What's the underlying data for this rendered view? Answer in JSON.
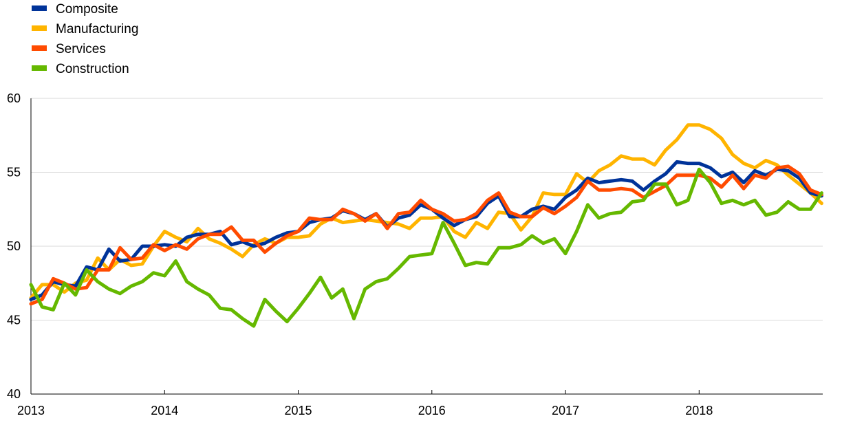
{
  "chart_data": {
    "type": "line",
    "x_start": "2013-01",
    "x_frequency": "monthly",
    "xticks": [
      "2013",
      "2014",
      "2015",
      "2016",
      "2017",
      "2018"
    ],
    "ylim": [
      40,
      60
    ],
    "yticks": [
      40,
      45,
      50,
      55,
      60
    ],
    "grid": "horizontal",
    "legend_position": "top-left",
    "series": [
      {
        "name": "Composite",
        "color": "#003399",
        "values": [
          46.4,
          46.7,
          47.6,
          47.4,
          47.3,
          48.6,
          48.4,
          49.8,
          49.0,
          49.1,
          50.0,
          50.0,
          50.1,
          50.0,
          50.6,
          50.8,
          50.8,
          51.0,
          50.1,
          50.3,
          50.0,
          50.2,
          50.6,
          50.9,
          51.0,
          51.6,
          51.8,
          51.9,
          52.4,
          52.2,
          51.8,
          52.2,
          51.3,
          51.9,
          52.1,
          52.8,
          52.5,
          51.9,
          51.4,
          51.8,
          52.0,
          52.9,
          53.4,
          52.0,
          52.0,
          52.5,
          52.7,
          52.5,
          53.3,
          53.8,
          54.6,
          54.3,
          54.4,
          54.5,
          54.4,
          53.8,
          54.4,
          54.9,
          55.7,
          55.6,
          55.6,
          55.3,
          54.7,
          55.0,
          54.3,
          55.1,
          54.8,
          55.2,
          55.1,
          54.6,
          53.6,
          53.4
        ]
      },
      {
        "name": "Manufacturing",
        "color": "#ffb400",
        "values": [
          46.5,
          47.4,
          47.4,
          46.9,
          47.5,
          47.7,
          49.2,
          48.4,
          49.1,
          48.7,
          48.8,
          50.0,
          51.0,
          50.6,
          50.3,
          51.2,
          50.5,
          50.2,
          49.8,
          49.3,
          50.1,
          50.5,
          50.2,
          50.6,
          50.6,
          50.7,
          51.5,
          51.9,
          51.6,
          51.7,
          51.8,
          51.7,
          51.6,
          51.5,
          51.2,
          51.9,
          51.9,
          52.0,
          51.0,
          50.6,
          51.6,
          51.2,
          52.3,
          52.2,
          51.1,
          52.0,
          53.6,
          53.5,
          53.5,
          54.9,
          54.3,
          55.1,
          55.5,
          56.1,
          55.9,
          55.9,
          55.5,
          56.5,
          57.2,
          58.2,
          58.2,
          57.9,
          57.3,
          56.2,
          55.6,
          55.3,
          55.8,
          55.5,
          54.8,
          54.2,
          53.6,
          52.9
        ]
      },
      {
        "name": "Services",
        "color": "#ff4b00",
        "values": [
          46.1,
          46.4,
          47.8,
          47.5,
          47.1,
          47.2,
          48.4,
          48.4,
          49.9,
          49.1,
          49.2,
          50.1,
          49.7,
          50.1,
          49.8,
          50.5,
          50.8,
          50.8,
          51.3,
          50.4,
          50.4,
          49.6,
          50.2,
          50.7,
          51.0,
          51.9,
          51.8,
          51.8,
          52.5,
          52.2,
          51.7,
          52.2,
          51.2,
          52.2,
          52.3,
          53.1,
          52.5,
          52.2,
          51.7,
          51.8,
          52.2,
          53.1,
          53.6,
          52.3,
          52.0,
          52.0,
          52.6,
          52.2,
          52.7,
          53.3,
          54.4,
          53.8,
          53.8,
          53.9,
          53.8,
          53.3,
          53.7,
          54.1,
          54.8,
          54.8,
          54.8,
          54.6,
          54.0,
          54.8,
          53.9,
          54.8,
          54.6,
          55.3,
          55.4,
          54.9,
          53.8,
          53.5
        ]
      },
      {
        "name": "Construction",
        "color": "#65b800",
        "values": [
          47.4,
          45.9,
          45.7,
          47.5,
          46.7,
          48.4,
          47.6,
          47.1,
          46.8,
          47.3,
          47.6,
          48.2,
          48.0,
          49.0,
          47.6,
          47.1,
          46.7,
          45.8,
          45.7,
          45.1,
          44.6,
          46.4,
          45.6,
          44.9,
          45.8,
          46.8,
          47.9,
          46.5,
          47.1,
          45.1,
          47.1,
          47.6,
          47.8,
          48.5,
          49.3,
          49.4,
          49.5,
          51.6,
          50.2,
          48.7,
          48.9,
          48.8,
          49.9,
          49.9,
          50.1,
          50.7,
          50.2,
          50.5,
          49.5,
          51.0,
          52.8,
          51.9,
          52.2,
          52.3,
          53.0,
          53.1,
          54.2,
          54.2,
          52.8,
          53.1,
          55.2,
          54.3,
          52.9,
          53.1,
          52.8,
          53.1,
          52.1,
          52.3,
          53.0,
          52.5,
          52.5,
          53.6
        ]
      }
    ]
  }
}
